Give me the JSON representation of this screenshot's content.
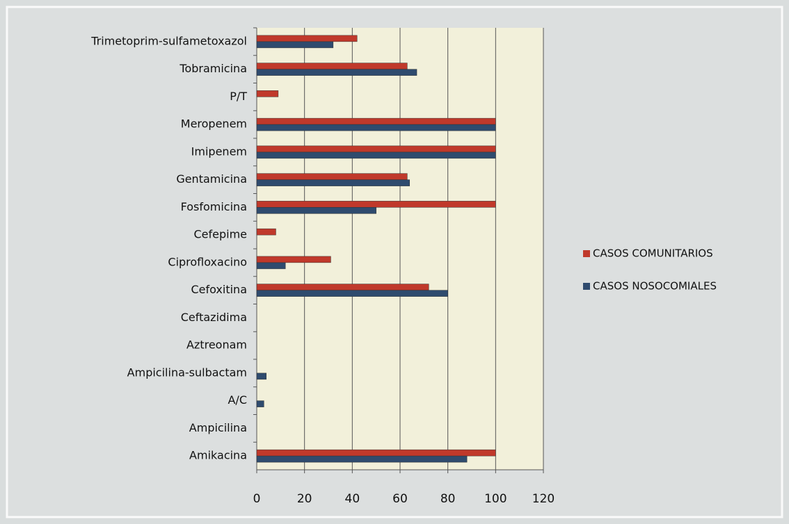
{
  "chart_data": {
    "type": "hbar",
    "categories": [
      "Trimetoprim-sulfametoxazol",
      "Tobramicina",
      "P/T",
      "Meropenem",
      "Imipenem",
      "Gentamicina",
      "Fosfomicina",
      "Cefepime",
      "Ciprofloxacino",
      "Cefoxitina",
      "Ceftazidima",
      "Aztreonam",
      "Ampicilina-sulbactam",
      "A/C",
      "Ampicilina",
      "Amikacina"
    ],
    "series": [
      {
        "name": "CASOS COMUNITARIOS",
        "color": "#c0392b",
        "values": [
          42,
          63,
          9,
          100,
          100,
          63,
          100,
          8,
          31,
          72,
          0,
          0,
          0,
          0,
          0,
          100
        ]
      },
      {
        "name": "CASOS NOSOCOMIALES",
        "color": "#2f4b6e",
        "values": [
          32,
          67,
          0,
          100,
          100,
          64,
          50,
          0,
          12,
          80,
          0,
          0,
          4,
          3,
          0,
          88
        ]
      }
    ],
    "xlim": [
      0,
      120
    ],
    "xticks": [
      0,
      20,
      40,
      60,
      80,
      100,
      120
    ],
    "grid": true,
    "legend": "right"
  }
}
